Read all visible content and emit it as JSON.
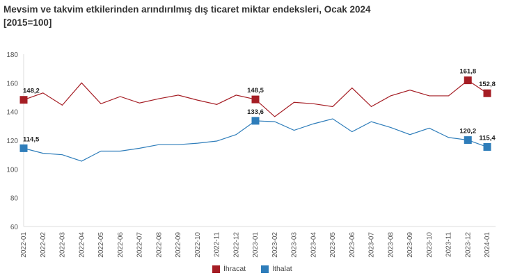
{
  "chart_data": {
    "type": "line",
    "title": "Mevsim ve takvim etkilerinden arındırılmış dış ticaret miktar endeksleri, Ocak 2024",
    "subtitle": "[2015=100]",
    "x": [
      "2022-01",
      "2022-02",
      "2022-03",
      "2022-04",
      "2022-05",
      "2022-06",
      "2022-07",
      "2022-08",
      "2022-09",
      "2022-10",
      "2022-11",
      "2022-12",
      "2023-01",
      "2023-02",
      "2023-03",
      "2023-04",
      "2023-05",
      "2023-06",
      "2023-07",
      "2023-08",
      "2023-09",
      "2023-10",
      "2023-11",
      "2023-12",
      "2024-01"
    ],
    "ylim": [
      60,
      180
    ],
    "yticks": [
      60,
      80,
      100,
      120,
      140,
      160,
      180
    ],
    "grid": false,
    "legend": "bottom",
    "series": [
      {
        "name": "İhracat",
        "color": "#a51d24",
        "values": [
          148.2,
          153,
          144.5,
          160,
          145.5,
          150.5,
          146,
          149,
          151.5,
          148,
          145,
          151.5,
          148.5,
          136.5,
          146.5,
          145.5,
          143.5,
          156.5,
          143.5,
          151,
          155,
          151,
          151,
          161.8,
          152.8
        ],
        "labels": {
          "0": "148,2",
          "12": "148,5",
          "23": "161,8",
          "24": "152,8"
        }
      },
      {
        "name": "İthalat",
        "color": "#2e7dba",
        "values": [
          114.5,
          111,
          110,
          105.5,
          112.5,
          112.5,
          114.5,
          117,
          117,
          118,
          119.5,
          124,
          133.6,
          133,
          127,
          131.5,
          135,
          126,
          133,
          129,
          124,
          128.5,
          122,
          120.2,
          115.4
        ],
        "labels": {
          "0": "114,5",
          "12": "133,6",
          "23": "120,2",
          "24": "115,4"
        }
      }
    ]
  }
}
